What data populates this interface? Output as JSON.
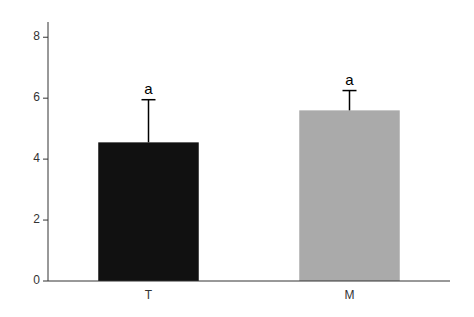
{
  "chart_data": {
    "type": "bar",
    "categories": [
      "T",
      "M"
    ],
    "values": [
      4.55,
      5.6
    ],
    "errors": [
      1.4,
      0.65
    ],
    "colors": [
      "#111111",
      "#aaaaaa"
    ],
    "annotations": [
      "a",
      "a"
    ],
    "ylim": [
      0,
      8.5
    ],
    "yticks": [
      0,
      2,
      4,
      6,
      8
    ],
    "grid": false
  }
}
